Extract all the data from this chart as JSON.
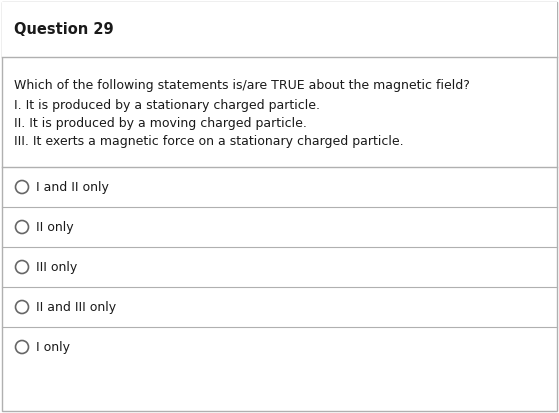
{
  "title": "Question 29",
  "question_text": "Which of the following statements is/are TRUE about the magnetic field?",
  "statements": [
    "I. It is produced by a stationary charged particle.",
    "II. It is produced by a moving charged particle.",
    "III. It exerts a magnetic force on a stationary charged particle."
  ],
  "options": [
    "I and II only",
    "II only",
    "III only",
    "II and III only",
    "I only"
  ],
  "bg_color": "#ffffff",
  "border_color": "#b0b0b0",
  "text_color": "#1a1a1a",
  "title_fontsize": 10.5,
  "body_fontsize": 9.0,
  "option_fontsize": 9.0,
  "fig_width": 5.59,
  "fig_height": 4.13,
  "dpi": 100
}
